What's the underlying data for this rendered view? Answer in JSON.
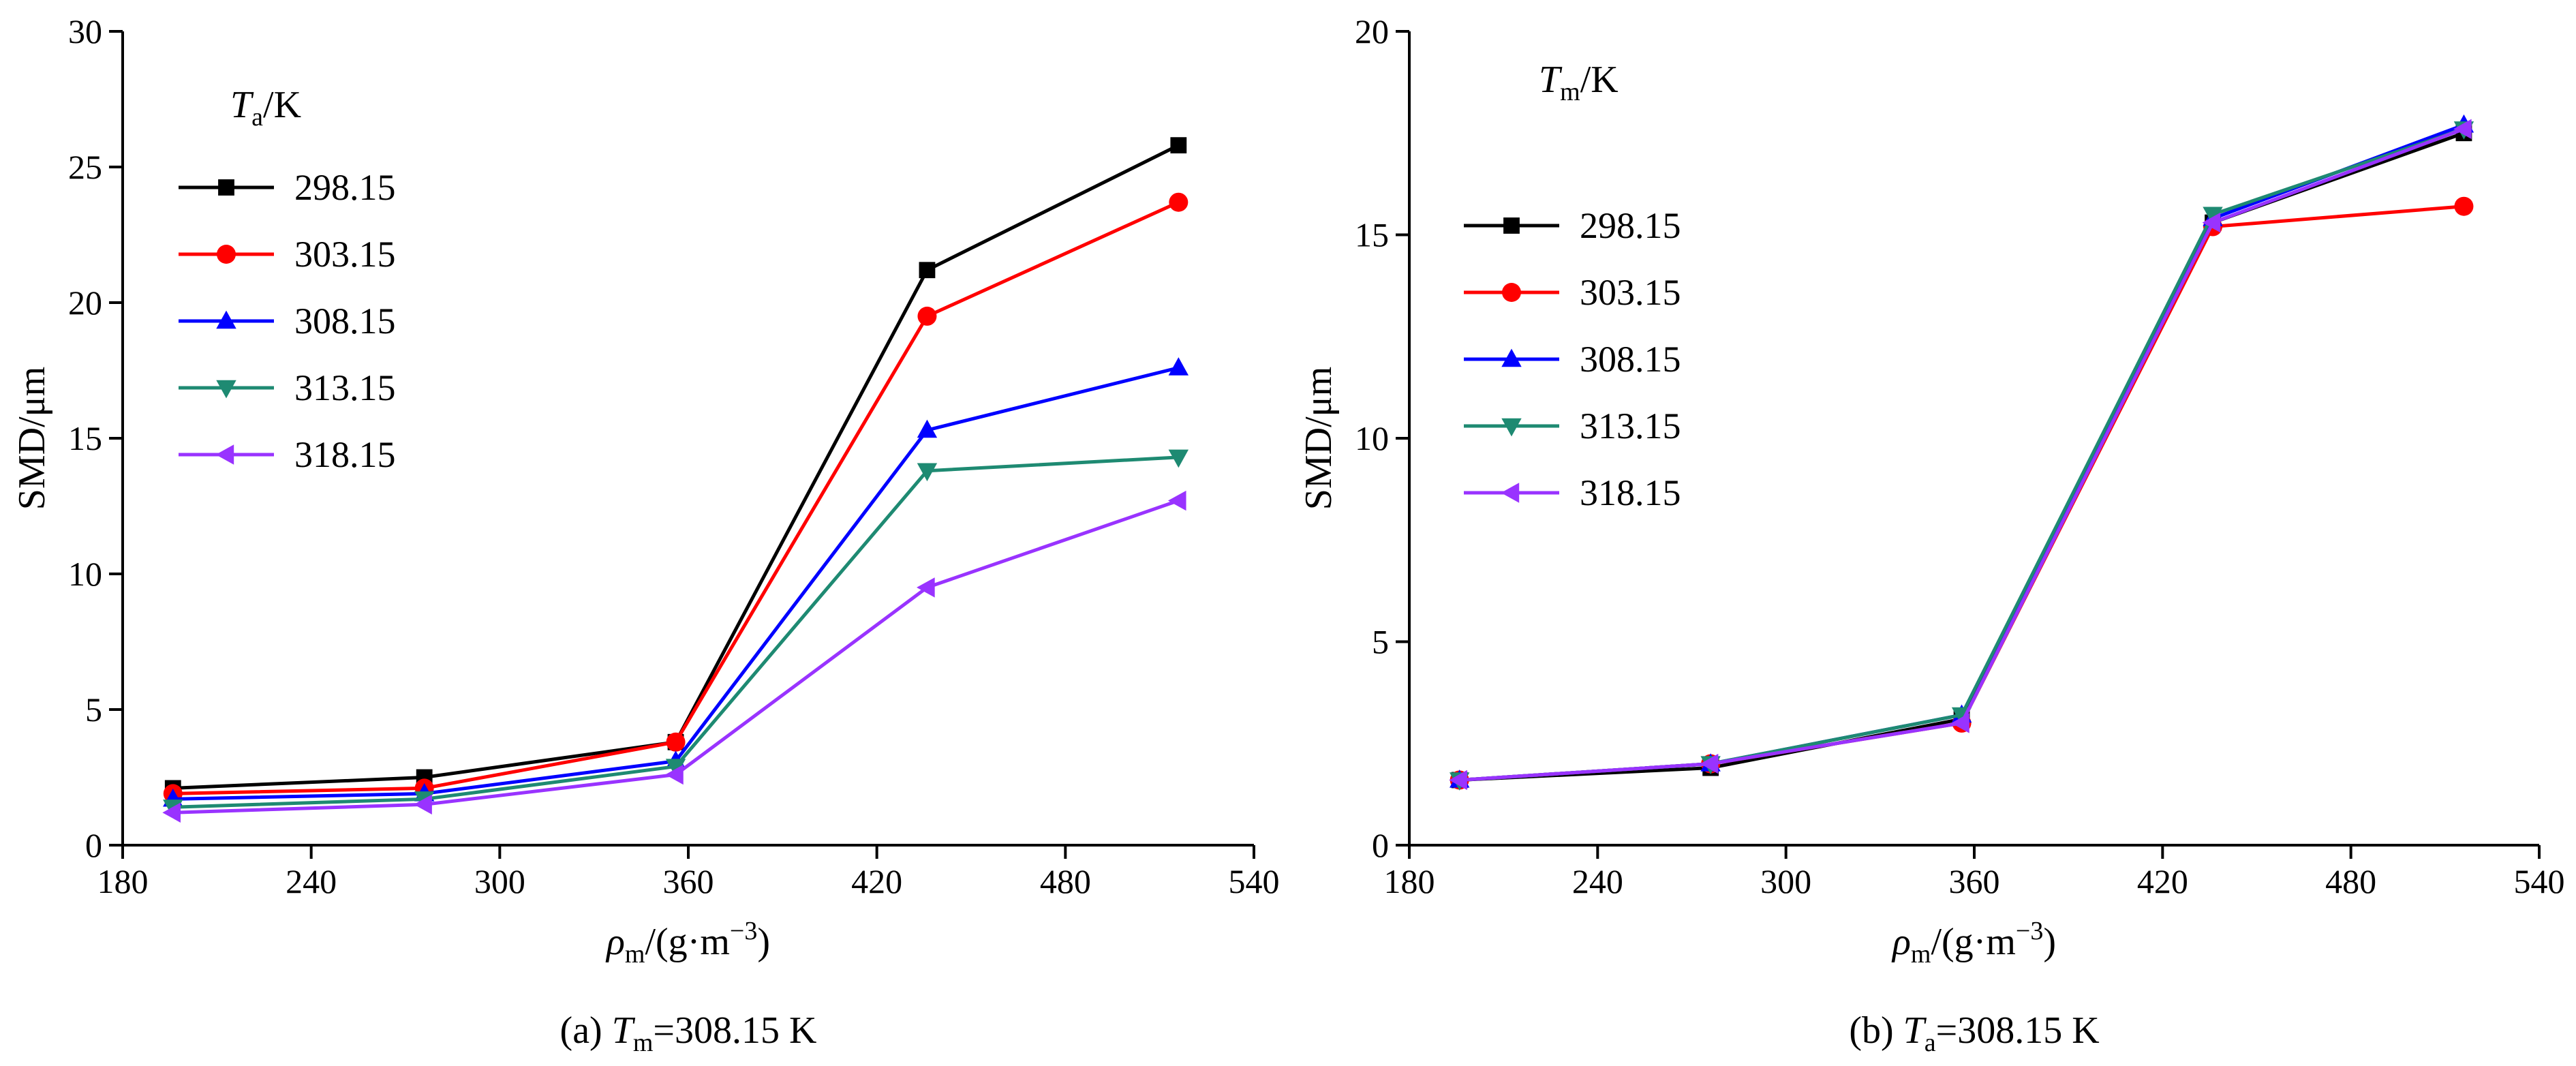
{
  "chart_data": [
    {
      "type": "line",
      "caption": {
        "prefix": "(a) ",
        "var": "T",
        "sub": "m",
        "rest": "=308.15 K"
      },
      "ylabel": "SMD/μm",
      "xlabel": {
        "var": "ρ",
        "sub": "m",
        "rest": "/(g·m",
        "sup": "−3",
        "close": ")"
      },
      "legend_title": {
        "var": "T",
        "sub": "a",
        "rest": "/K"
      },
      "legend_placement": "top-left",
      "xlim": [
        180,
        540
      ],
      "ylim": [
        0,
        30
      ],
      "x_ticks": [
        180,
        240,
        300,
        360,
        420,
        480,
        540
      ],
      "y_ticks": [
        0,
        5,
        10,
        15,
        20,
        25,
        30
      ],
      "x_tick_labels": [
        "180",
        "240",
        "300",
        "360",
        "420",
        "480",
        "540"
      ],
      "y_tick_labels": [
        "0",
        "5",
        "10",
        "15",
        "20",
        "25",
        "30"
      ],
      "grid": false,
      "x": [
        196,
        276,
        356,
        436,
        516
      ],
      "series": [
        {
          "name": "298.15",
          "color": "#000000",
          "marker": "square",
          "values": [
            2.1,
            2.5,
            3.8,
            21.2,
            25.8
          ]
        },
        {
          "name": "303.15",
          "color": "#ff0000",
          "marker": "circle",
          "values": [
            1.9,
            2.1,
            3.8,
            19.5,
            23.7
          ]
        },
        {
          "name": "308.15",
          "color": "#0000ff",
          "marker": "triangle-up",
          "values": [
            1.7,
            1.9,
            3.1,
            15.3,
            17.6
          ]
        },
        {
          "name": "313.15",
          "color": "#1e8a72",
          "marker": "triangle-down",
          "values": [
            1.4,
            1.7,
            2.9,
            13.8,
            14.3
          ]
        },
        {
          "name": "318.15",
          "color": "#9933ff",
          "marker": "triangle-left",
          "values": [
            1.2,
            1.5,
            2.6,
            9.5,
            12.7
          ]
        }
      ]
    },
    {
      "type": "line",
      "caption": {
        "prefix": "(b) ",
        "var": "T",
        "sub": "a",
        "rest": "=308.15 K"
      },
      "ylabel": "SMD/μm",
      "xlabel": {
        "var": "ρ",
        "sub": "m",
        "rest": "/(g·m",
        "sup": "−3",
        "close": ")"
      },
      "legend_title": {
        "var": "T",
        "sub": "m",
        "rest": "/K"
      },
      "legend_placement": "top-left",
      "xlim": [
        180,
        540
      ],
      "ylim": [
        0,
        20
      ],
      "x_ticks": [
        180,
        240,
        300,
        360,
        420,
        480,
        540
      ],
      "y_ticks": [
        0,
        5,
        10,
        15,
        20
      ],
      "x_tick_labels": [
        "180",
        "240",
        "300",
        "360",
        "420",
        "480",
        "540"
      ],
      "y_tick_labels": [
        "0",
        "5",
        "10",
        "15",
        "20"
      ],
      "grid": false,
      "x": [
        196,
        276,
        356,
        436,
        516
      ],
      "series": [
        {
          "name": "298.15",
          "color": "#000000",
          "marker": "square",
          "values": [
            1.6,
            1.9,
            3.1,
            15.3,
            17.5
          ]
        },
        {
          "name": "303.15",
          "color": "#ff0000",
          "marker": "circle",
          "values": [
            1.6,
            2.0,
            3.0,
            15.2,
            15.7
          ]
        },
        {
          "name": "308.15",
          "color": "#0000ff",
          "marker": "triangle-up",
          "values": [
            1.6,
            2.0,
            3.2,
            15.4,
            17.7
          ]
        },
        {
          "name": "313.15",
          "color": "#1e8a72",
          "marker": "triangle-down",
          "values": [
            1.6,
            2.0,
            3.2,
            15.5,
            17.6
          ]
        },
        {
          "name": "318.15",
          "color": "#9933ff",
          "marker": "triangle-left",
          "values": [
            1.6,
            2.0,
            3.0,
            15.3,
            17.6
          ]
        }
      ]
    }
  ]
}
